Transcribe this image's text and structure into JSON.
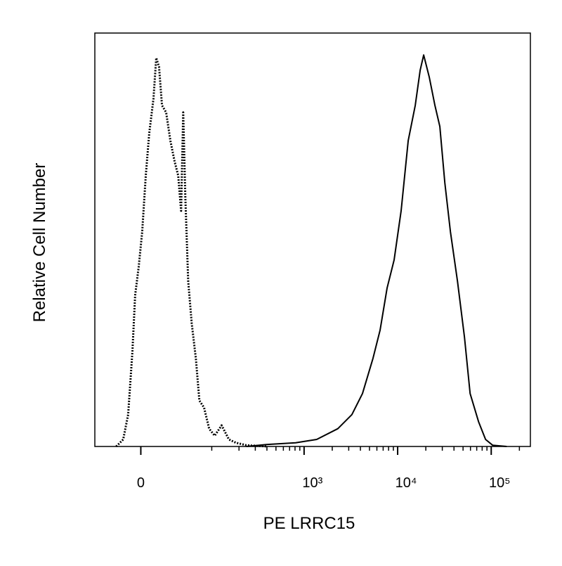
{
  "chart_data": {
    "type": "histogram-overlay",
    "xlabel": "PE LRRC15",
    "ylabel": "Relative Cell Number",
    "xscale": "biexponential",
    "xlim": [
      -50,
      262144
    ],
    "ylim": [
      0,
      100
    ],
    "xticks": [
      0,
      {
        "value": 1000,
        "label": "10³"
      },
      {
        "value": 10000,
        "label": "10⁴"
      },
      {
        "value": 100000,
        "label": "10⁵"
      }
    ],
    "series": [
      {
        "color": "#000000",
        "dash": "dotted",
        "x": [
          -23.2,
          -16.1,
          -11.4,
          -7.5,
          -5.0,
          -1.9,
          1.2,
          4.4,
          7.5,
          11.4,
          14.0,
          16.7,
          19.6,
          23.9,
          28.6,
          33.5,
          38.0,
          41.8,
          44.7,
          47.8,
          52.1,
          57.8,
          65.1,
          71.7,
          81.5,
          93.3,
          108,
          129,
          155,
          185,
          240,
          405
        ],
        "values": [
          0,
          1.7,
          7.7,
          23.0,
          36.6,
          43.4,
          51.9,
          65.5,
          75.7,
          84.2,
          94.0,
          91.8,
          82.5,
          80.8,
          73.9,
          68.9,
          65.5,
          57.0,
          80.8,
          60.4,
          40.0,
          29.8,
          21.3,
          11.1,
          9.4,
          4.3,
          2.6,
          5.1,
          1.7,
          0.9,
          0.3,
          0
        ]
      },
      {
        "color": "#000000",
        "dash": "solid",
        "x": [
          240,
          405,
          812,
          1364,
          2294,
          3244,
          4207,
          5450,
          6480,
          7711,
          9165,
          10900,
          12960,
          15410,
          17400,
          18970,
          21800,
          25040,
          28260,
          31900,
          36650,
          43560,
          51780,
          59470,
          73210,
          87050,
          103500,
          146300
        ],
        "values": [
          0,
          0.5,
          0.9,
          1.7,
          4.3,
          7.7,
          12.8,
          21.3,
          28.1,
          38.3,
          45.1,
          57.0,
          74.0,
          82.5,
          91.0,
          94.7,
          89.3,
          82.5,
          77.4,
          63.8,
          51.9,
          40.0,
          26.4,
          12.8,
          6.0,
          1.7,
          0.3,
          0
        ]
      }
    ]
  }
}
